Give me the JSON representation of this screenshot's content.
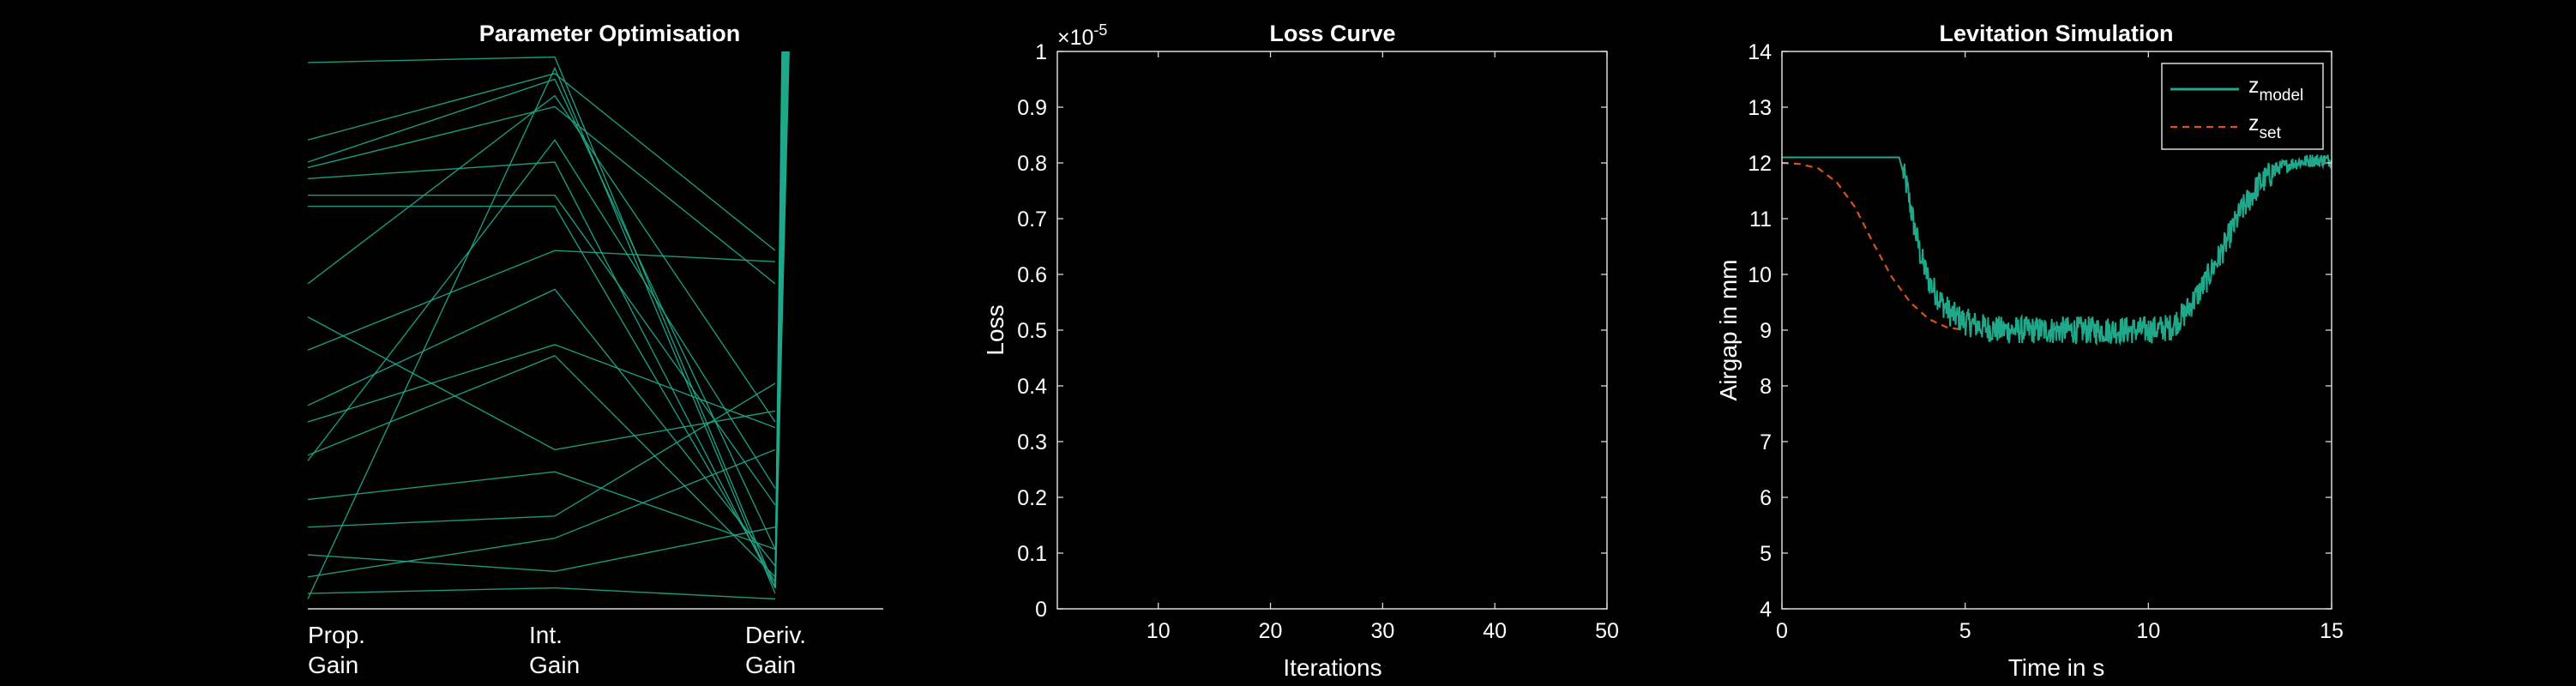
{
  "colors": {
    "background": "#000000",
    "axes": "#d9d9d9",
    "text": "#ffffff",
    "teal": "#1fa88a",
    "setpoint": "#d95319"
  },
  "chart_data": [
    {
      "type": "parallel_coordinates",
      "title": "Parameter Optimisation",
      "axes": [
        {
          "label_line1": "Prop.",
          "label_line2": "Gain"
        },
        {
          "label_line1": "Int.",
          "label_line2": "Gain"
        },
        {
          "label_line1": "Deriv.",
          "label_line2": "Gain"
        }
      ],
      "y_normalized_range": [
        0,
        1
      ],
      "series_note_values_are_normalized": true,
      "lines": [
        [
          0.98,
          0.99,
          0.03
        ],
        [
          0.84,
          0.96,
          0.64
        ],
        [
          0.8,
          0.95,
          0.1
        ],
        [
          0.79,
          0.9,
          0.58
        ],
        [
          0.77,
          0.8,
          0.03
        ],
        [
          0.74,
          0.74,
          0.18
        ],
        [
          0.58,
          0.92,
          0.33
        ],
        [
          0.46,
          0.64,
          0.62
        ],
        [
          0.36,
          0.57,
          0.07
        ],
        [
          0.33,
          0.47,
          0.32
        ],
        [
          0.27,
          0.45,
          0.05
        ],
        [
          0.26,
          0.84,
          0.21
        ],
        [
          0.19,
          0.24,
          0.1
        ],
        [
          0.14,
          0.16,
          0.4
        ],
        [
          0.09,
          0.06,
          0.14
        ],
        [
          0.05,
          0.12,
          0.28
        ],
        [
          0.02,
          0.03,
          0.01
        ],
        [
          0.01,
          0.97,
          0.02
        ],
        [
          0.52,
          0.28,
          0.35
        ],
        [
          0.72,
          0.72,
          0.04
        ]
      ],
      "bundle_at_deriv": {
        "from": 0.03,
        "to": 1.0,
        "count": 10
      }
    },
    {
      "type": "line",
      "title": "Loss Curve",
      "xlabel": "Iterations",
      "ylabel": "Loss",
      "exponent_label": "×10",
      "exponent_power": "-5",
      "xlim": [
        1,
        50
      ],
      "ylim": [
        0,
        1
      ],
      "xticks": [
        "10",
        "20",
        "30",
        "40",
        "50"
      ],
      "yticks": [
        "0",
        "0.1",
        "0.2",
        "0.3",
        "0.4",
        "0.5",
        "0.6",
        "0.7",
        "0.8",
        "0.9",
        "1"
      ],
      "series": []
    },
    {
      "type": "line",
      "title": "Levitation Simulation",
      "xlabel": "Time in s",
      "ylabel": "Airgap in mm",
      "xlim": [
        0,
        15
      ],
      "ylim": [
        4,
        14
      ],
      "xticks": [
        "0",
        "5",
        "10",
        "15"
      ],
      "yticks": [
        "4",
        "5",
        "6",
        "7",
        "8",
        "9",
        "10",
        "11",
        "12",
        "13",
        "14"
      ],
      "legend": {
        "position": "top-right",
        "entries": [
          {
            "base": "z",
            "sub": "model"
          },
          {
            "base": "z",
            "sub": "set"
          }
        ]
      },
      "series": [
        {
          "name": "z_model",
          "style": "solid",
          "x": [
            0,
            1,
            2,
            3,
            3.2,
            3.4,
            3.6,
            3.8,
            4.0,
            4.3,
            4.6,
            5.0,
            5.5,
            6,
            7,
            8,
            9,
            10,
            10.6,
            11.0,
            11.5,
            12.0,
            12.5,
            13.0,
            13.5,
            14.0,
            14.5,
            15
          ],
          "y": [
            12.1,
            12.1,
            12.1,
            12.1,
            12.1,
            11.6,
            10.9,
            10.3,
            9.9,
            9.55,
            9.3,
            9.15,
            9.05,
            9.0,
            9.0,
            9.0,
            9.0,
            9.0,
            9.05,
            9.3,
            9.8,
            10.4,
            11.1,
            11.6,
            11.9,
            12.0,
            12.05,
            12.05
          ],
          "noise_amplitude_mm": 0.25
        },
        {
          "name": "z_set",
          "style": "dashed",
          "x": [
            0,
            0.5,
            1.0,
            1.5,
            2.0,
            2.5,
            3.0,
            3.5,
            4.0,
            4.5,
            5.0
          ],
          "y": [
            12.0,
            11.98,
            11.9,
            11.65,
            11.2,
            10.55,
            9.95,
            9.5,
            9.2,
            9.05,
            9.0
          ]
        }
      ]
    }
  ]
}
